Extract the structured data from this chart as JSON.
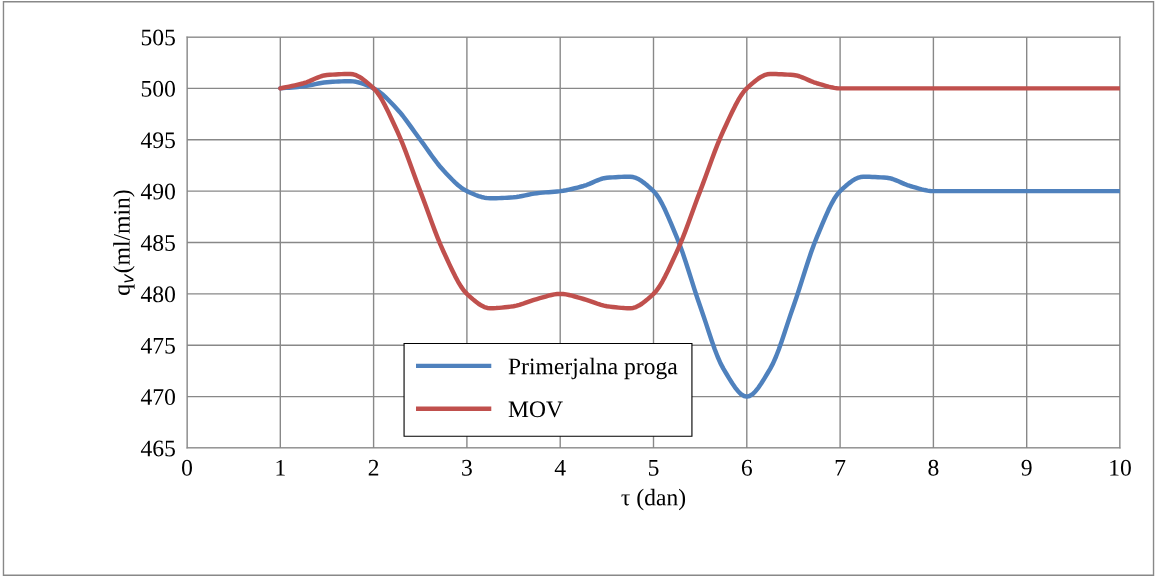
{
  "chart_data": {
    "type": "line",
    "xlabel": "τ (dan)",
    "ylabel": "q$_{v}$(ml/min)",
    "x": [
      1,
      1.25,
      1.5,
      1.75,
      2,
      2.25,
      2.5,
      2.75,
      3,
      3.25,
      3.5,
      3.75,
      4,
      4.25,
      4.5,
      4.75,
      5,
      5.25,
      5.5,
      5.75,
      6,
      6.25,
      6.5,
      6.75,
      7,
      7.25,
      7.5,
      7.75,
      8,
      8.25,
      8.5,
      8.75,
      9,
      9.25,
      9.5,
      9.75,
      10
    ],
    "series": [
      {
        "name": "Primerjalna proga",
        "color": "#4f81bd",
        "values": [
          500,
          500.2,
          500.6,
          500.7,
          500,
          498,
          495,
          492,
          490,
          489.3,
          489.4,
          489.8,
          490,
          490.5,
          491.3,
          491.4,
          490,
          485.5,
          478.8,
          472.7,
          470,
          472.7,
          478.8,
          485.5,
          490,
          491.4,
          491.3,
          490.5,
          490,
          490,
          490,
          490,
          490,
          490,
          490,
          490,
          490
        ]
      },
      {
        "name": "MOV",
        "color": "#c0504d",
        "values": [
          500,
          500.5,
          501.3,
          501.4,
          500,
          495.9,
          490,
          484.1,
          480,
          478.6,
          478.8,
          479.5,
          480,
          479.5,
          478.8,
          478.6,
          480,
          484.1,
          490,
          495.9,
          500,
          501.4,
          501.3,
          500.5,
          500,
          500,
          500,
          500,
          500,
          500,
          500,
          500,
          500,
          500,
          500,
          500,
          500
        ]
      }
    ],
    "xlim": [
      0,
      10
    ],
    "xticks": [
      0,
      1,
      2,
      3,
      4,
      5,
      6,
      7,
      8,
      9,
      10
    ],
    "ylim": [
      465,
      505
    ],
    "yticks": [
      465,
      470,
      475,
      480,
      485,
      490,
      495,
      500,
      505
    ],
    "grid": true,
    "legend": "bottom",
    "marker": "none",
    "line_style": "solid"
  }
}
